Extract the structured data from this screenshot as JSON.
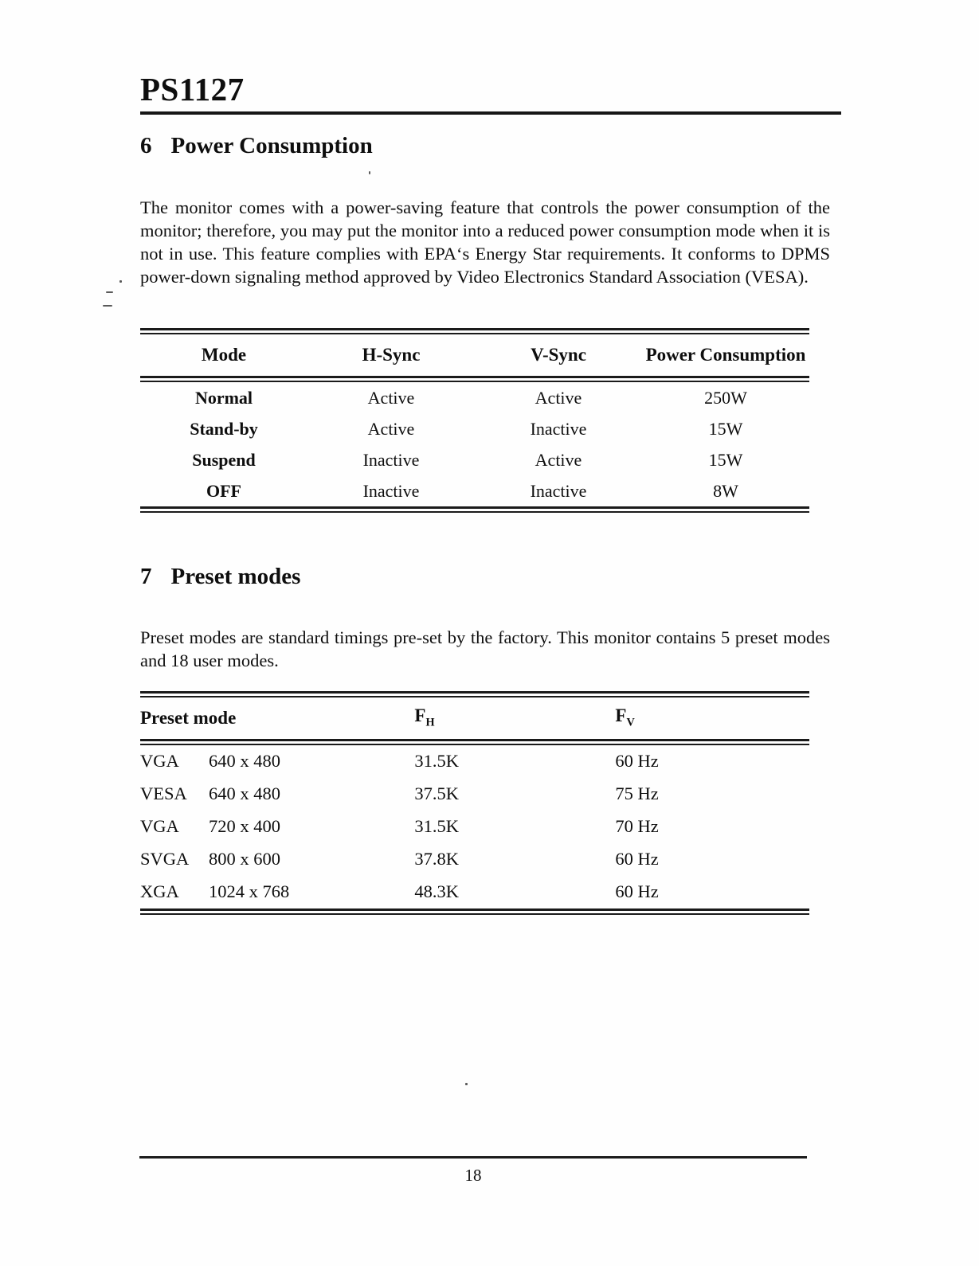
{
  "page": {
    "doc_title": "PS1127",
    "page_number": "18"
  },
  "section6": {
    "number": "6",
    "title": "Power Consumption",
    "paragraph": "The monitor comes with a power-saving feature that controls the power consumption of the monitor; therefore, you may put the monitor into a reduced power consumption mode when it is not in use. This feature complies with EPA‘s Energy Star requirements. It conforms to DPMS power-down signaling method approved by Video Electronics Standard Association (VESA)."
  },
  "power_table": {
    "headers": [
      "Mode",
      "H-Sync",
      "V-Sync",
      "Power Consumption"
    ],
    "rows": [
      {
        "mode": "Normal",
        "h_sync": "Active",
        "v_sync": "Active",
        "power": "250W"
      },
      {
        "mode": "Stand-by",
        "h_sync": "Active",
        "v_sync": "Inactive",
        "power": "15W"
      },
      {
        "mode": "Suspend",
        "h_sync": "Inactive",
        "v_sync": "Active",
        "power": "15W"
      },
      {
        "mode": "OFF",
        "h_sync": "Inactive",
        "v_sync": "Inactive",
        "power": "8W"
      }
    ]
  },
  "section7": {
    "number": "7",
    "title": "Preset modes",
    "paragraph": "Preset modes are standard timings pre-set by the factory. This monitor contains 5 preset modes and 18 user modes."
  },
  "preset_table": {
    "headers": {
      "mode": "Preset mode",
      "fh_base": "F",
      "fh_sub": "H",
      "fv_base": "F",
      "fv_sub": "V"
    },
    "rows": [
      {
        "standard": "VGA",
        "resolution": "640 x 480",
        "fh": "31.5K",
        "fv": "60 Hz"
      },
      {
        "standard": "VESA",
        "resolution": "640 x 480",
        "fh": "37.5K",
        "fv": "75 Hz"
      },
      {
        "standard": "VGA",
        "resolution": "720 x 400",
        "fh": "31.5K",
        "fv": "70 Hz"
      },
      {
        "standard": "SVGA",
        "resolution": "800 x 600",
        "fh": "37.8K",
        "fv": "60 Hz"
      },
      {
        "standard": "XGA",
        "resolution": "1024 x 768",
        "fh": "48.3K",
        "fv": "60 Hz"
      }
    ]
  }
}
